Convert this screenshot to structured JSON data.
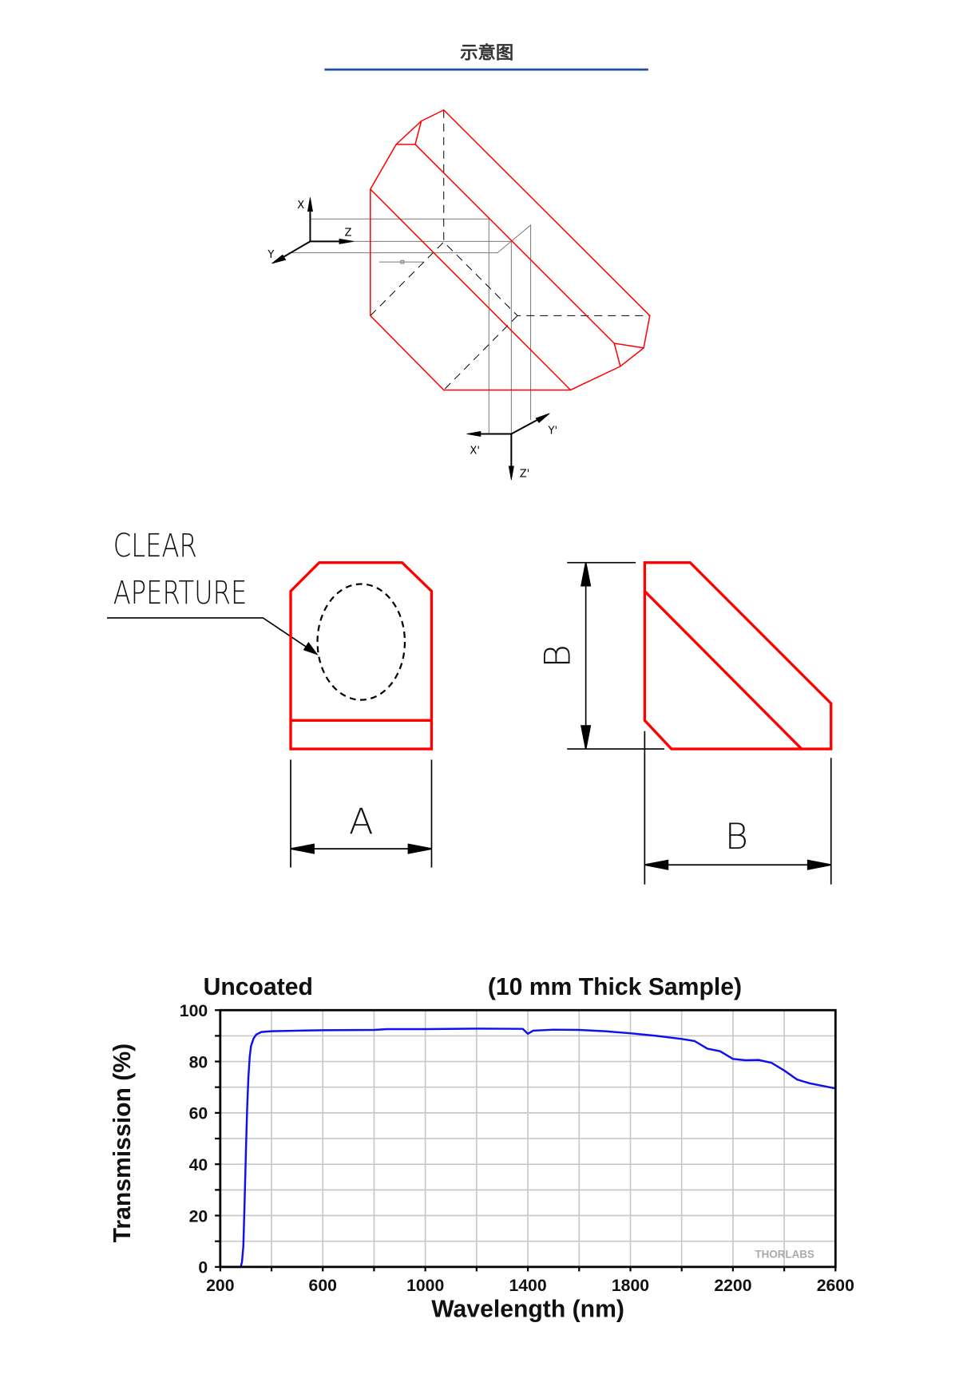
{
  "header": {
    "title": "示意图",
    "underline_color": "#1f4e9c"
  },
  "isometric": {
    "axes": {
      "x": "X",
      "y": "Y",
      "z": "Z",
      "x_out": "X'",
      "y_out": "Y'",
      "z_out": "Z'"
    },
    "edge_color": "#ff0000"
  },
  "front_view": {
    "label_line1": "CLEAR",
    "label_line2": "APERTURE",
    "dimension": "A"
  },
  "side_view": {
    "dimension_height": "B",
    "dimension_width": "B"
  },
  "chart_data": {
    "type": "line",
    "title_left": "Uncoated",
    "title_right": "(10 mm Thick Sample)",
    "xlabel": "Wavelength (nm)",
    "ylabel": "Transmission (%)",
    "xlim": [
      200,
      2600
    ],
    "ylim": [
      0,
      100
    ],
    "xticks": [
      200,
      600,
      1000,
      1400,
      1800,
      2200,
      2600
    ],
    "yticks": [
      0,
      20,
      40,
      60,
      80,
      100
    ],
    "grid": true,
    "watermark": "THORLABS",
    "line_color": "#1010ee",
    "series": [
      {
        "x": [
          200,
          280,
          285,
          290,
          295,
          300,
          305,
          310,
          315,
          320,
          330,
          340,
          360,
          400,
          500,
          600,
          800,
          850,
          1000,
          1200,
          1380,
          1400,
          1420,
          1500,
          1600,
          1700,
          1800,
          1900,
          2000,
          2050,
          2100,
          2150,
          2200,
          2250,
          2300,
          2350,
          2400,
          2450,
          2500,
          2600
        ],
        "y": [
          0,
          0,
          2,
          8,
          25,
          45,
          62,
          74,
          82,
          86,
          89,
          90.5,
          91.5,
          91.8,
          92,
          92.2,
          92.3,
          92.6,
          92.6,
          92.8,
          92.7,
          90.8,
          92,
          92.4,
          92.3,
          91.8,
          91,
          90,
          88.8,
          88,
          85,
          84,
          81,
          80.5,
          80.6,
          79.5,
          76.5,
          73,
          71.5,
          69.5
        ]
      }
    ]
  }
}
